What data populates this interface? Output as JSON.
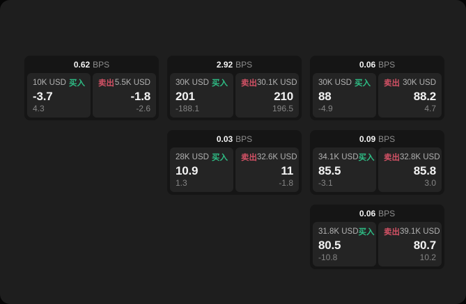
{
  "labels": {
    "buy": "买入",
    "sell": "卖出",
    "bps_unit": "BPS"
  },
  "colors": {
    "buy_green": "#2ebd85",
    "sell_red": "#d25165",
    "screen_bg": "#1e1e1e",
    "card_bg": "#151515",
    "panel_bg": "#242424"
  },
  "cards": [
    {
      "bps": "0.62",
      "buy": {
        "amount": "10K USD",
        "value": "-3.7",
        "sub": "4.3"
      },
      "sell": {
        "amount": "5.5K USD",
        "value": "-1.8",
        "sub": "-2.6"
      }
    },
    {
      "bps": "2.92",
      "buy": {
        "amount": "30K USD",
        "value": "201",
        "sub": "-188.1"
      },
      "sell": {
        "amount": "30.1K USD",
        "value": "210",
        "sub": "196.5"
      }
    },
    {
      "bps": "0.06",
      "buy": {
        "amount": "30K USD",
        "value": "88",
        "sub": "-4.9"
      },
      "sell": {
        "amount": "30K USD",
        "value": "88.2",
        "sub": "4.7"
      }
    },
    {
      "bps": "0.03",
      "buy": {
        "amount": "28K USD",
        "value": "10.9",
        "sub": "1.3"
      },
      "sell": {
        "amount": "32.6K USD",
        "value": "11",
        "sub": "-1.8"
      }
    },
    {
      "bps": "0.09",
      "buy": {
        "amount": "34.1K USD",
        "value": "85.5",
        "sub": "-3.1"
      },
      "sell": {
        "amount": "32.8K USD",
        "value": "85.8",
        "sub": "3.0"
      }
    },
    {
      "bps": "0.06",
      "buy": {
        "amount": "31.8K USD",
        "value": "80.5",
        "sub": "-10.8"
      },
      "sell": {
        "amount": "39.1K USD",
        "value": "80.7",
        "sub": "10.2"
      }
    }
  ]
}
